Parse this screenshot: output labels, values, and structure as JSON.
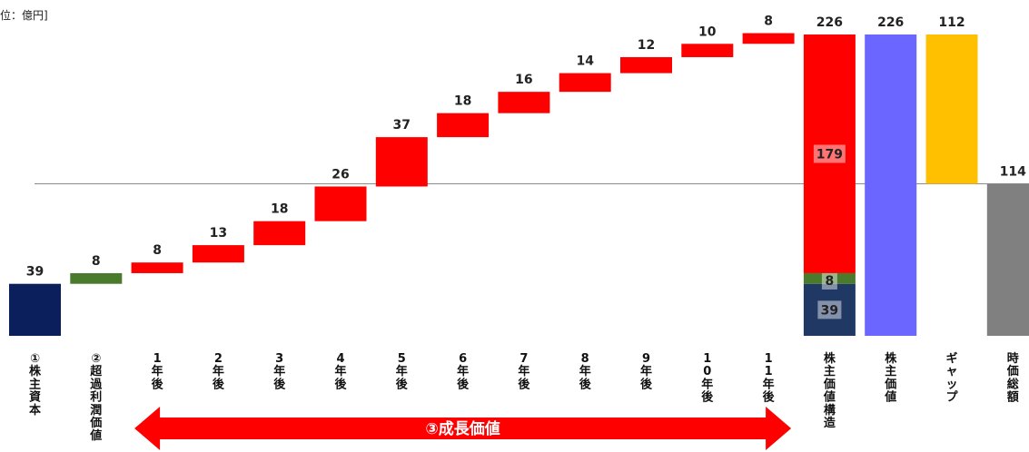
{
  "unit_label": "位：億円]",
  "chart_data": {
    "type": "bar",
    "subtype": "waterfall",
    "ylim": [
      0,
      226
    ],
    "reference_line_value": 114,
    "grid": false,
    "categories": [
      "①株主資本",
      "②超過利潤価値",
      "1年後",
      "2年後",
      "3年後",
      "4年後",
      "5年後",
      "6年後",
      "7年後",
      "8年後",
      "9年後",
      "10年後",
      "11年後",
      "株主価値構造",
      "株主価値",
      "ギャップ",
      "時価総額"
    ],
    "waterfall": [
      {
        "category": "①株主資本",
        "base": 0,
        "value": 39,
        "label": "39",
        "color": "#0b1f5c"
      },
      {
        "category": "②超過利潤価値",
        "base": 39,
        "value": 8,
        "label": "8",
        "color": "#4a7a2c"
      },
      {
        "category": "1年後",
        "base": 47,
        "value": 8,
        "label": "8",
        "color": "#ff0000"
      },
      {
        "category": "2年後",
        "base": 55,
        "value": 13,
        "label": "13",
        "color": "#ff0000"
      },
      {
        "category": "3年後",
        "base": 68,
        "value": 18,
        "label": "18",
        "color": "#ff0000"
      },
      {
        "category": "4年後",
        "base": 86,
        "value": 26,
        "label": "26",
        "color": "#ff0000"
      },
      {
        "category": "5年後",
        "base": 112,
        "value": 37,
        "label": "37",
        "color": "#ff0000"
      },
      {
        "category": "6年後",
        "base": 149,
        "value": 18,
        "label": "18",
        "color": "#ff0000"
      },
      {
        "category": "7年後",
        "base": 167,
        "value": 16,
        "label": "16",
        "color": "#ff0000"
      },
      {
        "category": "8年後",
        "base": 183,
        "value": 14,
        "label": "14",
        "color": "#ff0000"
      },
      {
        "category": "9年後",
        "base": 197,
        "value": 12,
        "label": "12",
        "color": "#ff0000"
      },
      {
        "category": "10年後",
        "base": 209,
        "value": 10,
        "label": "10",
        "color": "#ff0000"
      },
      {
        "category": "11年後",
        "base": 219,
        "value": 8,
        "label": "8",
        "color": "#ff0000"
      }
    ],
    "stacked": {
      "category": "株主価値構造",
      "total": 226,
      "total_label": "226",
      "segments": [
        {
          "value": 39,
          "label": "39",
          "color": "#1f3864"
        },
        {
          "value": 8,
          "label": "8",
          "color": "#4a7a2c"
        },
        {
          "value": 179,
          "label": "179",
          "color": "#ff0000"
        }
      ]
    },
    "totals": [
      {
        "category": "株主価値",
        "value": 226,
        "label": "226",
        "color": "#6b66ff"
      },
      {
        "category": "ギャップ",
        "base": 114,
        "value": 112,
        "label": "112",
        "color": "#ffc000"
      },
      {
        "category": "時価総額",
        "value": 114,
        "label": "114",
        "color": "#808080"
      }
    ],
    "annotation": {
      "label": "③成長価値",
      "from": "1年後",
      "to": "11年後",
      "color": "#ff0000"
    }
  }
}
